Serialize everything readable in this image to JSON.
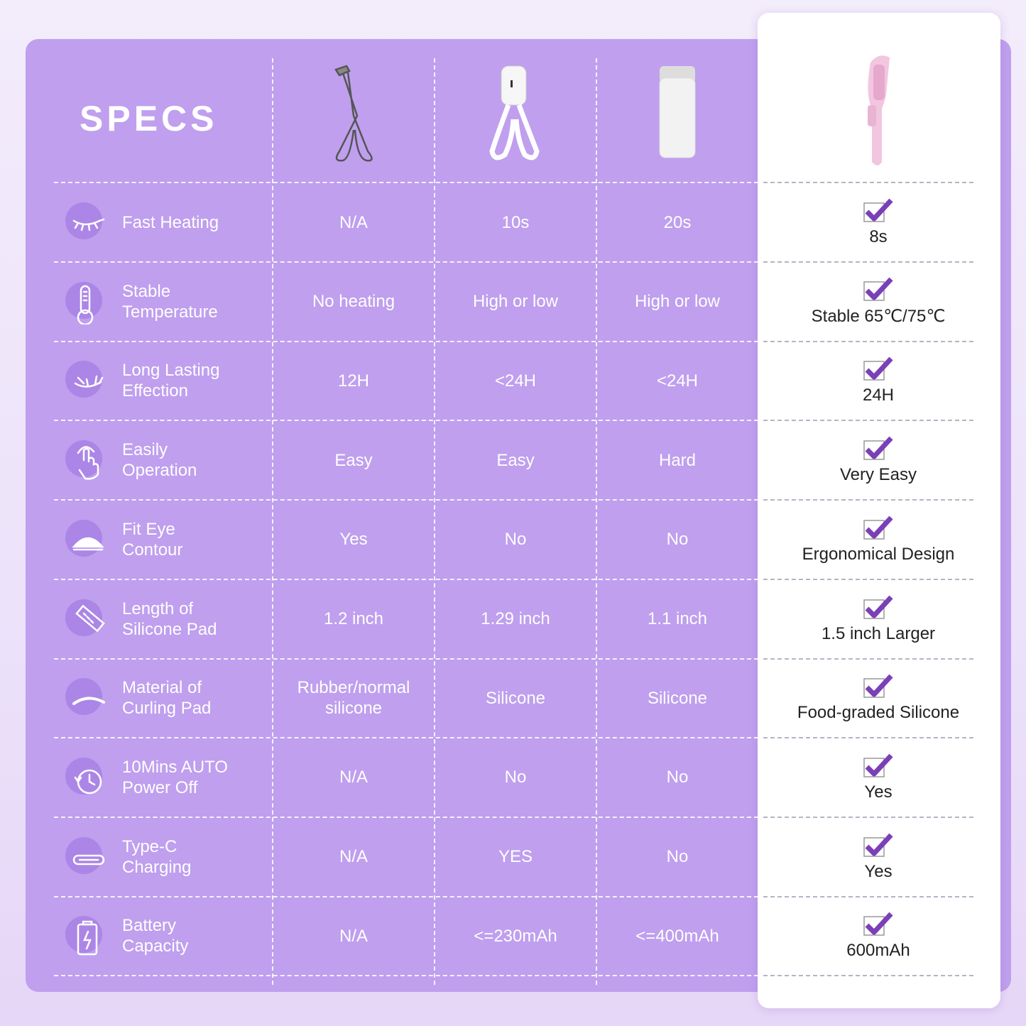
{
  "title": "SPECS",
  "colors": {
    "panel": "#bf9fee",
    "card": "#ffffff",
    "check": "#7b3fb8"
  },
  "products": [
    {
      "name": "manual-curler"
    },
    {
      "name": "heated-scissor-curler"
    },
    {
      "name": "heated-box-curler"
    },
    {
      "name": "pink-heated-curler"
    }
  ],
  "rows": [
    {
      "icon": "closed-eye-icon",
      "label": "Fast Heating",
      "values": [
        "N/A",
        "10s",
        "20s"
      ],
      "best": "8s"
    },
    {
      "icon": "thermometer-icon",
      "label": "Stable\nTemperature",
      "values": [
        "No heating",
        "High or low",
        "High or low"
      ],
      "best": "Stable 65℃/75℃"
    },
    {
      "icon": "curled-lash-icon",
      "label": "Long Lasting\nEffection",
      "values": [
        "12H",
        "<24H",
        "<24H"
      ],
      "best": "24H"
    },
    {
      "icon": "touch-hand-icon",
      "label": "Easily\nOperation",
      "values": [
        "Easy",
        "Easy",
        "Hard"
      ],
      "best": "Very Easy"
    },
    {
      "icon": "eye-contour-icon",
      "label": "Fit Eye\nContour",
      "values": [
        "Yes",
        "No",
        "No"
      ],
      "best": "Ergonomical Design"
    },
    {
      "icon": "ruler-icon",
      "label": "Length of\nSilicone Pad",
      "values": [
        "1.2 inch",
        "1.29 inch",
        "1.1 inch"
      ],
      "best": "1.5 inch Larger"
    },
    {
      "icon": "curve-pad-icon",
      "label": "Material of\nCurling Pad",
      "values": [
        "Rubber/normal\nsilicone",
        "Silicone",
        "Silicone"
      ],
      "best": "Food-graded Silicone"
    },
    {
      "icon": "clock-icon",
      "label": "10Mins AUTO\nPower Off",
      "values": [
        "N/A",
        "No",
        "No"
      ],
      "best": "Yes"
    },
    {
      "icon": "usb-c-icon",
      "label": "Type-C\nCharging",
      "values": [
        "N/A",
        "YES",
        "No"
      ],
      "best": "Yes"
    },
    {
      "icon": "battery-icon",
      "label": "Battery\nCapacity",
      "values": [
        "N/A",
        "<=230mAh",
        "<=400mAh"
      ],
      "best": "600mAh"
    }
  ]
}
